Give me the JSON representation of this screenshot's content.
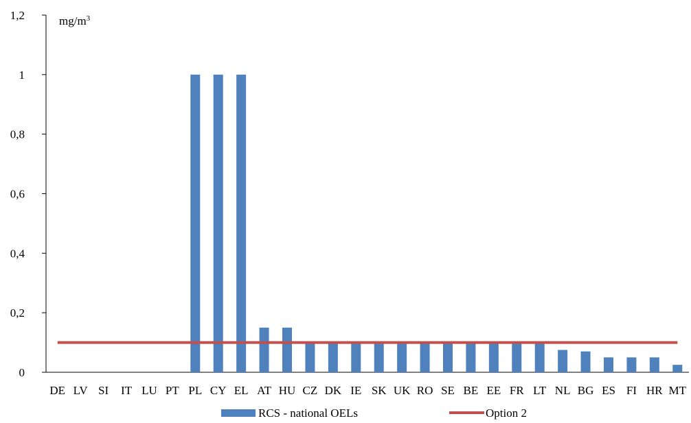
{
  "chart_data": {
    "type": "bar",
    "unit_label": "mg/m",
    "unit_superscript": "3",
    "ylim": [
      0,
      1.2
    ],
    "yticks": [
      0,
      0.2,
      0.4,
      0.6,
      0.8,
      1,
      1.2
    ],
    "ytick_labels": [
      "0",
      "0,2",
      "0,4",
      "0,6",
      "0,8",
      "1",
      "1,2"
    ],
    "grid": false,
    "categories": [
      "DE",
      "LV",
      "SI",
      "IT",
      "LU",
      "PT",
      "PL",
      "CY",
      "EL",
      "AT",
      "HU",
      "CZ",
      "DK",
      "IE",
      "SK",
      "UK",
      "RO",
      "SE",
      "BE",
      "EE",
      "FR",
      "LT",
      "NL",
      "BG",
      "ES",
      "FI",
      "HR",
      "MT"
    ],
    "series": [
      {
        "name": "RCS - national OELs",
        "type": "bar",
        "color": "#4F81BD",
        "values": [
          0,
          0,
          0,
          0,
          0,
          0,
          1,
          1,
          1,
          0.15,
          0.15,
          0.1,
          0.1,
          0.1,
          0.1,
          0.1,
          0.1,
          0.1,
          0.1,
          0.1,
          0.1,
          0.1,
          0.075,
          0.07,
          0.05,
          0.05,
          0.05,
          0.025
        ]
      },
      {
        "name": "Option 2",
        "type": "line",
        "color": "#C0504D",
        "value": 0.1
      }
    ],
    "legend_position": "bottom"
  }
}
